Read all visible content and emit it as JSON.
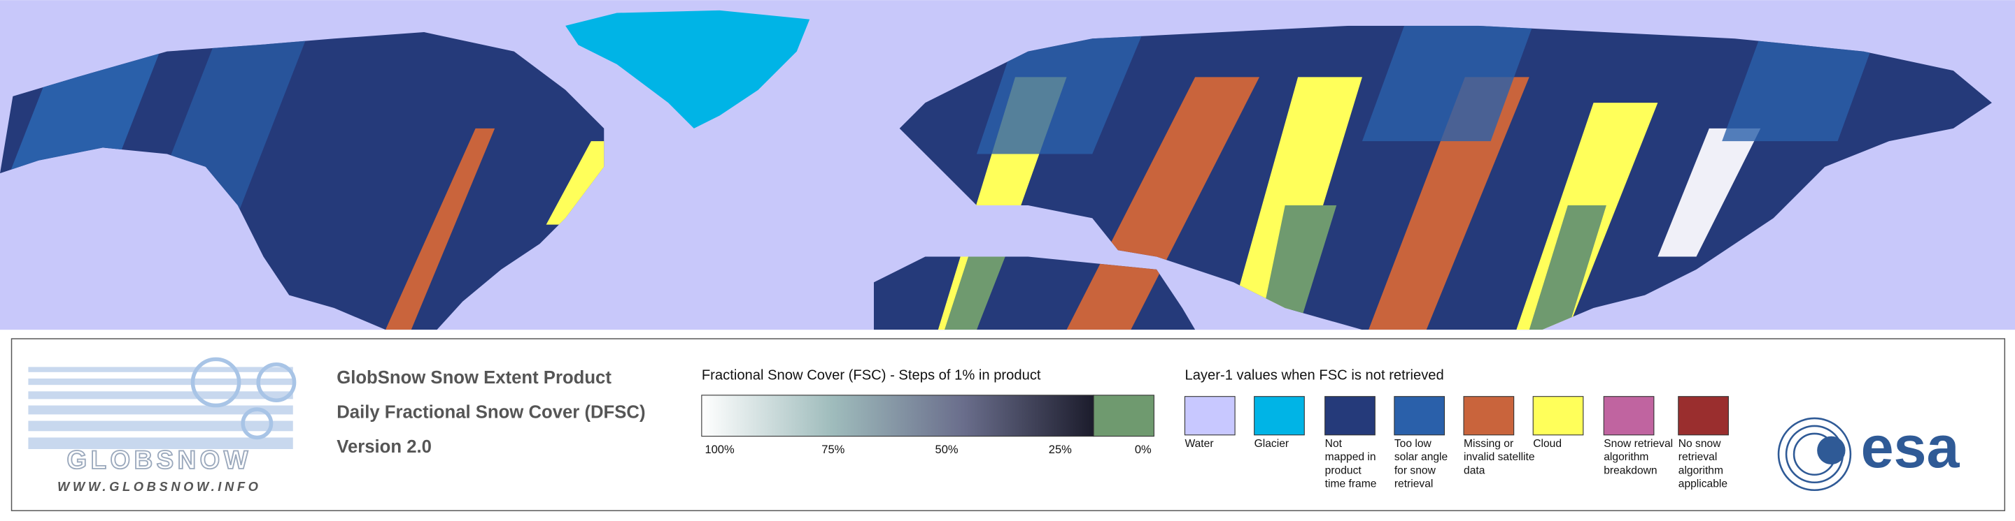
{
  "product": {
    "name": "GlobSnow Snow Extent Product",
    "subtitle": "Daily Fractional Snow Cover (DFSC)",
    "version": "Version 2.0"
  },
  "logo": {
    "brand": "GLOBSNOW",
    "url": "WWW.GLOBSNOW.INFO",
    "partner": "esa"
  },
  "fsc_legend": {
    "title": "Fractional Snow Cover (FSC) - Steps of 1% in product",
    "labels": [
      "100%",
      "75%",
      "50%",
      "25%",
      "0%"
    ],
    "colors": [
      "#ffffff",
      "#9fbcbc",
      "#6a6e8c",
      "#1c1c2c"
    ],
    "zero_color": "#6f9a6f"
  },
  "layer1_legend": {
    "title": "Layer-1 values when FSC is not retrieved",
    "items": [
      {
        "label": [
          "Water"
        ],
        "color": "#c8c8ff"
      },
      {
        "label": [
          "Glacier"
        ],
        "color": "#00b4e6"
      },
      {
        "label": [
          "Not",
          "mapped in",
          "product",
          "time frame"
        ],
        "color": "#253a7a"
      },
      {
        "label": [
          "Too low",
          "solar angle",
          "for snow",
          "retrieval"
        ],
        "color": "#2a60aa"
      },
      {
        "label": [
          "Missing or",
          "invalid satellite",
          "data"
        ],
        "color": "#c9643c"
      },
      {
        "label": [
          "Cloud"
        ],
        "color": "#ffff5a"
      },
      {
        "label": [
          "Snow retrieval",
          "algorithm",
          "breakdown"
        ],
        "color": "#c064a0"
      },
      {
        "label": [
          "No snow",
          "retrieval",
          "algorithm",
          "applicable"
        ],
        "color": "#9a2e2e"
      }
    ]
  }
}
